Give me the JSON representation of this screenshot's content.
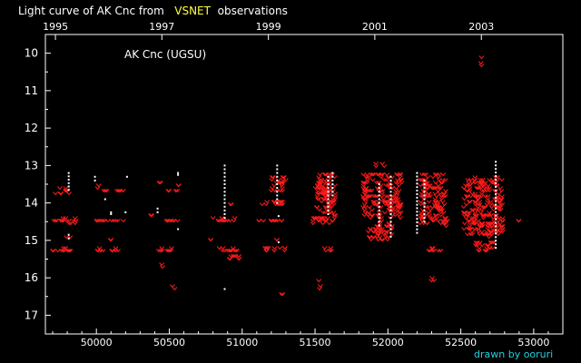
{
  "chart_data": {
    "type": "scatter",
    "title_prefix": "Light curve of AK Cnc from",
    "title_highlight": "VSNET",
    "title_suffix": "observations",
    "annotation": "AK Cnc (UGSU)",
    "credit": "drawn by ooruri",
    "x_domain": [
      49650,
      53200
    ],
    "ylim": [
      17.5,
      9.5
    ],
    "x_ticks": [
      50000,
      50500,
      51000,
      51500,
      52000,
      52500,
      53000
    ],
    "x_tick_labels": [
      "50000",
      "50500",
      "51000",
      "51500",
      "52000",
      "52500",
      "53000"
    ],
    "top_ticks": [
      {
        "jd": 49719,
        "label": "1995"
      },
      {
        "jd": 50449,
        "label": "1997"
      },
      {
        "jd": 51180,
        "label": "1999"
      },
      {
        "jd": 51910,
        "label": "2001"
      },
      {
        "jd": 52641,
        "label": "2003"
      }
    ],
    "y_ticks": [
      10,
      11,
      12,
      13,
      14,
      15,
      16,
      17
    ],
    "y_tick_labels": [
      "10",
      "11",
      "12",
      "13",
      "14",
      "15",
      "16",
      "17"
    ],
    "colors": {
      "upper_limit": "#ff1a1a",
      "positive": "#ffffff",
      "highlight": "#ffff40",
      "credit": "#20d0e0",
      "axis": "#ffffff"
    },
    "series": [
      {
        "kind": "upper_limit",
        "clusters": [
          [
            49720,
            49820,
            13.6,
            13.75
          ],
          [
            49700,
            49870,
            14.4,
            14.55
          ],
          [
            49690,
            49830,
            15.2,
            15.3
          ],
          [
            49790,
            49820,
            14.9,
            14.9
          ],
          [
            49990,
            50030,
            13.55,
            13.6
          ],
          [
            50050,
            50200,
            13.65,
            13.7
          ],
          [
            50000,
            50210,
            14.45,
            14.5
          ],
          [
            49990,
            50150,
            15.2,
            15.3
          ],
          [
            50090,
            50100,
            15.0,
            15.0
          ],
          [
            50410,
            50570,
            14.45,
            14.5
          ],
          [
            50420,
            50520,
            15.2,
            15.3
          ],
          [
            50490,
            50580,
            13.65,
            13.7
          ],
          [
            50560,
            50580,
            13.5,
            13.5
          ],
          [
            50430,
            50440,
            13.45,
            13.5
          ],
          [
            50440,
            50460,
            15.6,
            15.7
          ],
          [
            50520,
            50540,
            16.2,
            16.3
          ],
          [
            50370,
            50390,
            14.3,
            14.3
          ],
          [
            50780,
            50800,
            15.0,
            15.0
          ],
          [
            50800,
            50950,
            14.4,
            14.5
          ],
          [
            50810,
            50970,
            15.2,
            15.3
          ],
          [
            50880,
            50990,
            15.4,
            15.5
          ],
          [
            50920,
            50930,
            14.0,
            14.0
          ],
          [
            51080,
            51280,
            14.45,
            14.5
          ],
          [
            51130,
            51290,
            13.95,
            14.05
          ],
          [
            51150,
            51300,
            15.2,
            15.3
          ],
          [
            51200,
            51300,
            13.3,
            13.7
          ],
          [
            51210,
            51240,
            13.95,
            13.95
          ],
          [
            51260,
            51280,
            16.4,
            16.4
          ],
          [
            51230,
            51240,
            15.0,
            15.0
          ],
          [
            51500,
            51600,
            13.5,
            13.8
          ],
          [
            51470,
            51640,
            14.35,
            14.55
          ],
          [
            51560,
            51620,
            15.2,
            15.3
          ],
          [
            51520,
            51540,
            16.1,
            16.3
          ],
          [
            51510,
            51640,
            13.2,
            14.3
          ],
          [
            51830,
            52100,
            13.2,
            14.4
          ],
          [
            51860,
            52030,
            14.5,
            15.0
          ],
          [
            51900,
            51920,
            12.95,
            13.0
          ],
          [
            51960,
            51980,
            12.9,
            13.0
          ],
          [
            52220,
            52400,
            13.2,
            14.6
          ],
          [
            52280,
            52380,
            15.2,
            15.3
          ],
          [
            52290,
            52320,
            16.0,
            16.1
          ],
          [
            52400,
            52410,
            14.5,
            14.5
          ],
          [
            52520,
            52790,
            13.3,
            14.9
          ],
          [
            52600,
            52730,
            15.0,
            15.3
          ],
          [
            52630,
            52650,
            10.1,
            10.3
          ],
          [
            52890,
            52900,
            14.5,
            14.5
          ]
        ]
      },
      {
        "kind": "positive",
        "clusters": [
          [
            49810,
            49810,
            13.2,
            13.65
          ],
          [
            49810,
            49810,
            14.85,
            14.95
          ],
          [
            49990,
            49990,
            13.3,
            13.4
          ],
          [
            50060,
            50060,
            13.9,
            13.9
          ],
          [
            50100,
            50100,
            14.25,
            14.3
          ],
          [
            50210,
            50210,
            13.3,
            13.3
          ],
          [
            50200,
            50200,
            14.25,
            14.25
          ],
          [
            50420,
            50420,
            14.15,
            14.25
          ],
          [
            50560,
            50560,
            13.2,
            13.25
          ],
          [
            50560,
            50560,
            14.7,
            14.7
          ],
          [
            50880,
            50880,
            13.0,
            14.4
          ],
          [
            50880,
            50880,
            16.3,
            16.3
          ],
          [
            51240,
            51240,
            13.0,
            14.0
          ],
          [
            51250,
            51250,
            14.35,
            14.35
          ],
          [
            51250,
            51250,
            15.05,
            15.05
          ],
          [
            51590,
            51590,
            13.3,
            14.3
          ],
          [
            51620,
            51620,
            13.2,
            13.8
          ],
          [
            51940,
            51940,
            13.5,
            14.6
          ],
          [
            52020,
            52020,
            13.3,
            14.9
          ],
          [
            52200,
            52200,
            13.2,
            14.8
          ],
          [
            52250,
            52250,
            13.4,
            14.5
          ],
          [
            52740,
            52740,
            12.9,
            15.2
          ]
        ]
      }
    ]
  }
}
